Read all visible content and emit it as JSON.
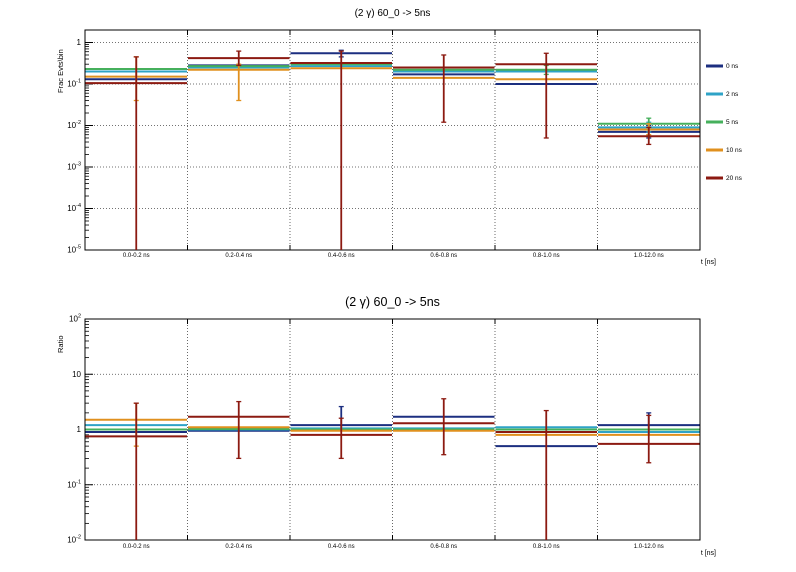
{
  "page": {
    "background": "#ffffff"
  },
  "chart_data": [
    {
      "type": "line",
      "panel": "top",
      "title": "(2 γ) 60_0 -> 5ns",
      "ylabel": "Frac Evts\\bin",
      "xlabel": "t [ns]",
      "yscale": "log",
      "ylim": [
        1e-05,
        2
      ],
      "grid": true,
      "legend_position": "right",
      "categories": [
        "0.0-0.2 ns",
        "0.2-0.4 ns",
        "0.4-0.6 ns",
        "0.6-0.8 ns",
        "0.8-1.0 ns",
        "1.0-12.0 ns"
      ],
      "series": [
        {
          "name": "0 ns",
          "color": "#1c2f80",
          "values": [
            0.13,
            0.28,
            0.55,
            0.17,
            0.1,
            0.007
          ],
          "errors": [
            null,
            null,
            [
              0.45,
              0.65
            ],
            null,
            null,
            [
              0.005,
              0.01
            ]
          ]
        },
        {
          "name": "2 ns",
          "color": "#2fa3c7",
          "values": [
            0.2,
            0.25,
            0.27,
            0.2,
            0.2,
            0.009
          ],
          "errors": [
            null,
            null,
            null,
            null,
            null,
            [
              0.007,
              0.012
            ]
          ]
        },
        {
          "name": "5 ns",
          "color": "#46b05c",
          "values": [
            0.23,
            0.27,
            0.3,
            0.22,
            0.22,
            0.011
          ],
          "errors": [
            null,
            null,
            null,
            null,
            [
              0.17,
              0.28
            ],
            [
              0.008,
              0.015
            ]
          ]
        },
        {
          "name": "10 ns",
          "color": "#e0901e",
          "values": [
            0.15,
            0.22,
            0.24,
            0.14,
            0.13,
            0.008
          ],
          "errors": [
            [
              0.04,
              0.45
            ],
            [
              0.04,
              0.3
            ],
            null,
            null,
            null,
            [
              0.006,
              0.011
            ]
          ]
        },
        {
          "name": "20 ns",
          "color": "#8c1a11",
          "values": [
            0.105,
            0.42,
            0.32,
            0.25,
            0.3,
            0.0055
          ],
          "errors": [
            [
              1e-05,
              0.45
            ],
            [
              0.28,
              0.62
            ],
            [
              1e-05,
              0.62
            ],
            [
              0.012,
              0.5
            ],
            [
              0.005,
              0.55
            ],
            [
              0.0035,
              0.009
            ]
          ]
        }
      ]
    },
    {
      "type": "line",
      "panel": "bottom",
      "title": "(2 γ) 60_0 -> 5ns",
      "ylabel": "Ratio",
      "xlabel": "t [ns]",
      "yscale": "log",
      "ylim": [
        0.01,
        100
      ],
      "grid": true,
      "legend_position": "none",
      "categories": [
        "0.0-0.2 ns",
        "0.2-0.4 ns",
        "0.4-0.6 ns",
        "0.6-0.8 ns",
        "0.8-1.0 ns",
        "1.0-12.0 ns"
      ],
      "series": [
        {
          "name": "0 ns",
          "color": "#1c2f80",
          "values": [
            0.9,
            0.95,
            1.2,
            1.7,
            0.5,
            1.2
          ],
          "errors": [
            null,
            null,
            [
              1.0,
              2.6
            ],
            null,
            null,
            [
              0.8,
              2.0
            ]
          ]
        },
        {
          "name": "2 ns",
          "color": "#2fa3c7",
          "values": [
            1.2,
            1.0,
            1.05,
            1.05,
            1.1,
            0.9
          ],
          "errors": [
            null,
            null,
            null,
            null,
            null,
            null
          ]
        },
        {
          "name": "5 ns",
          "color": "#46b05c",
          "values": [
            1.0,
            1.02,
            1.0,
            1.0,
            1.0,
            1.0
          ],
          "errors": [
            null,
            null,
            null,
            null,
            null,
            null
          ]
        },
        {
          "name": "10 ns",
          "color": "#e0901e",
          "values": [
            1.5,
            1.1,
            0.95,
            0.95,
            0.8,
            0.8
          ],
          "errors": [
            [
              0.5,
              3.0
            ],
            null,
            null,
            null,
            null,
            null
          ]
        },
        {
          "name": "20 ns",
          "color": "#8c1a11",
          "values": [
            0.75,
            1.7,
            0.8,
            1.3,
            0.9,
            0.55
          ],
          "errors": [
            [
              0.01,
              3.0
            ],
            [
              0.3,
              3.2
            ],
            [
              0.3,
              1.6
            ],
            [
              0.35,
              3.6
            ],
            [
              0.01,
              2.2
            ],
            [
              0.25,
              1.8
            ]
          ]
        }
      ]
    }
  ]
}
